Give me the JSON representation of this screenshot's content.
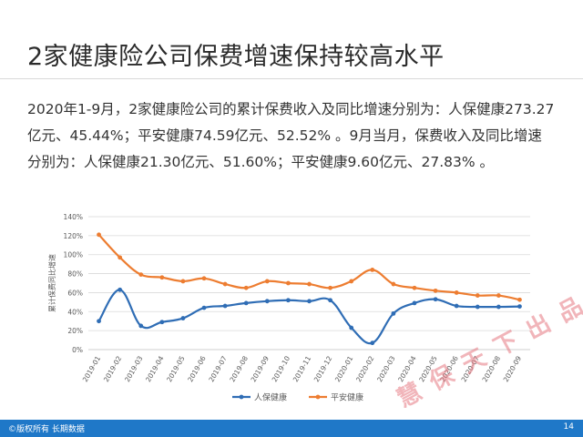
{
  "slide": {
    "title": "2家健康险公司保费增速保持较高水平",
    "body": "2020年1-9月，2家健康险公司的累计保费收入及同比增速分别为：人保健康273.27亿元、45.44%；平安健康74.59亿元、52.52% 。9月当月，保费收入及同比增速分别为：人保健康21.30亿元、51.60%；平安健康9.60亿元、27.83% 。",
    "page_number": "14",
    "footer_left": "©版权所有 长期数据",
    "watermark": "慧保天下出品"
  },
  "colors": {
    "series1": "#2f6db5",
    "series2": "#ed7d31",
    "footer": "#1f78c8",
    "grid": "#d9d9d9"
  },
  "chart_data": {
    "type": "line",
    "title": "",
    "xlabel": "",
    "ylabel": "累计保费同比增速",
    "ylim": [
      0,
      140
    ],
    "yticks": [
      0,
      20,
      40,
      60,
      80,
      100,
      120,
      140
    ],
    "ytick_labels": [
      "0%",
      "20%",
      "40%",
      "60%",
      "80%",
      "100%",
      "120%",
      "140%"
    ],
    "y_unit": "%",
    "grid": true,
    "legend_position": "bottom",
    "categories": [
      "2019-01",
      "2019-02",
      "2019-03",
      "2019-04",
      "2019-05",
      "2019-06",
      "2019-07",
      "2019-08",
      "2019-09",
      "2019-10",
      "2019-11",
      "2019-12",
      "2020-01",
      "2020-02",
      "2020-03",
      "2020-04",
      "2020-05",
      "2020-06",
      "2020-07",
      "2020-08",
      "2020-09"
    ],
    "series": [
      {
        "name": "人保健康",
        "color": "#2f6db5",
        "values": [
          30,
          63,
          25,
          29,
          33,
          44,
          46,
          49,
          51,
          52,
          51,
          52,
          23,
          7,
          38,
          49,
          53,
          46,
          45,
          45,
          45.44
        ]
      },
      {
        "name": "平安健康",
        "color": "#ed7d31",
        "values": [
          121,
          97,
          79,
          76,
          72,
          75,
          69,
          65,
          72,
          70,
          69,
          65,
          72,
          84,
          69,
          65,
          62,
          60,
          57,
          57,
          52.52
        ]
      }
    ]
  }
}
